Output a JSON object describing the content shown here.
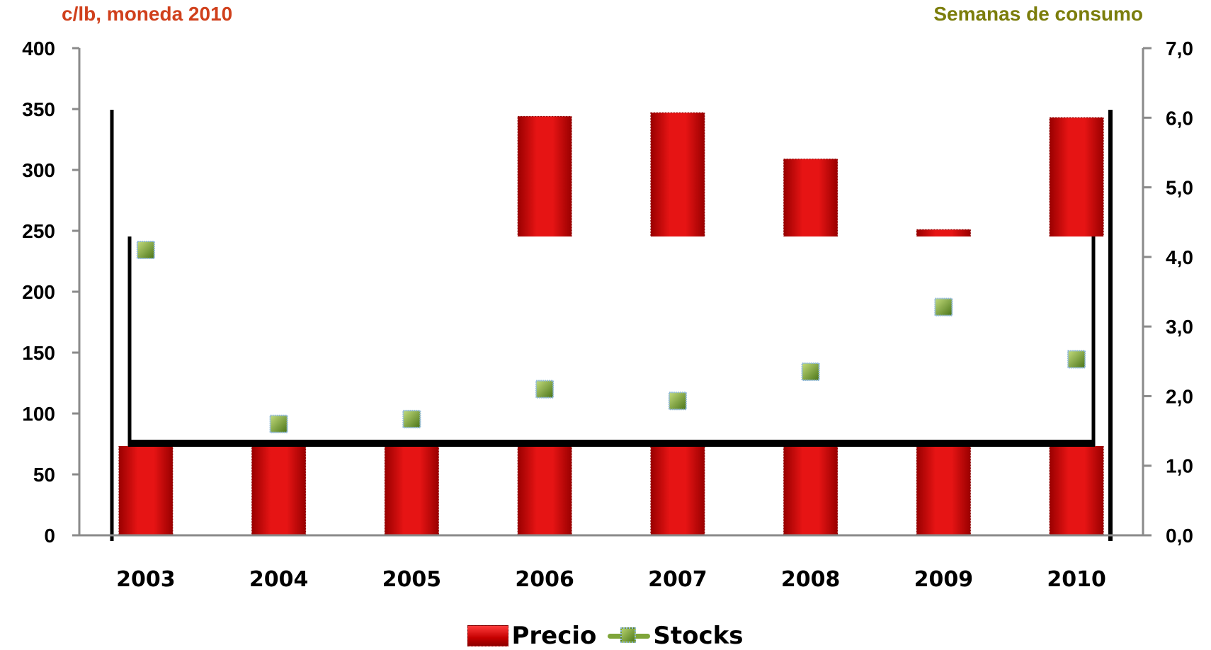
{
  "chart_data": {
    "type": "bar",
    "categories": [
      "2003",
      "2004",
      "2005",
      "2006",
      "2007",
      "2008",
      "2009",
      "2010"
    ],
    "series": [
      {
        "name": "Precio",
        "axis": "left",
        "kind": "bar",
        "values": [
          109,
          92,
          95,
          344,
          347,
          309,
          251,
          343
        ]
      },
      {
        "name": "Stocks",
        "axis": "right",
        "kind": "marker",
        "values": [
          4.1,
          1.6,
          1.67,
          2.1,
          1.93,
          2.35,
          3.28,
          2.53
        ]
      }
    ],
    "ylabel": "c/lb, moneda 2010",
    "ylabel_right": "Semanas de consumo",
    "ylim": [
      0,
      400
    ],
    "ylim_right": [
      0,
      7.0
    ],
    "yticks": [
      "0",
      "50",
      "100",
      "150",
      "200",
      "250",
      "300",
      "350",
      "400"
    ],
    "yticks_right": [
      "0,0",
      "1,0",
      "2,0",
      "3,0",
      "4,0",
      "5,0",
      "6,0",
      "7,0"
    ],
    "legend_position": "bottom",
    "colors": {
      "bar": "#d40000",
      "marker": "#6f9a2b",
      "left_title": "#d0401c",
      "right_title": "#7b7d0b",
      "axis": "#8a8a8a"
    }
  }
}
